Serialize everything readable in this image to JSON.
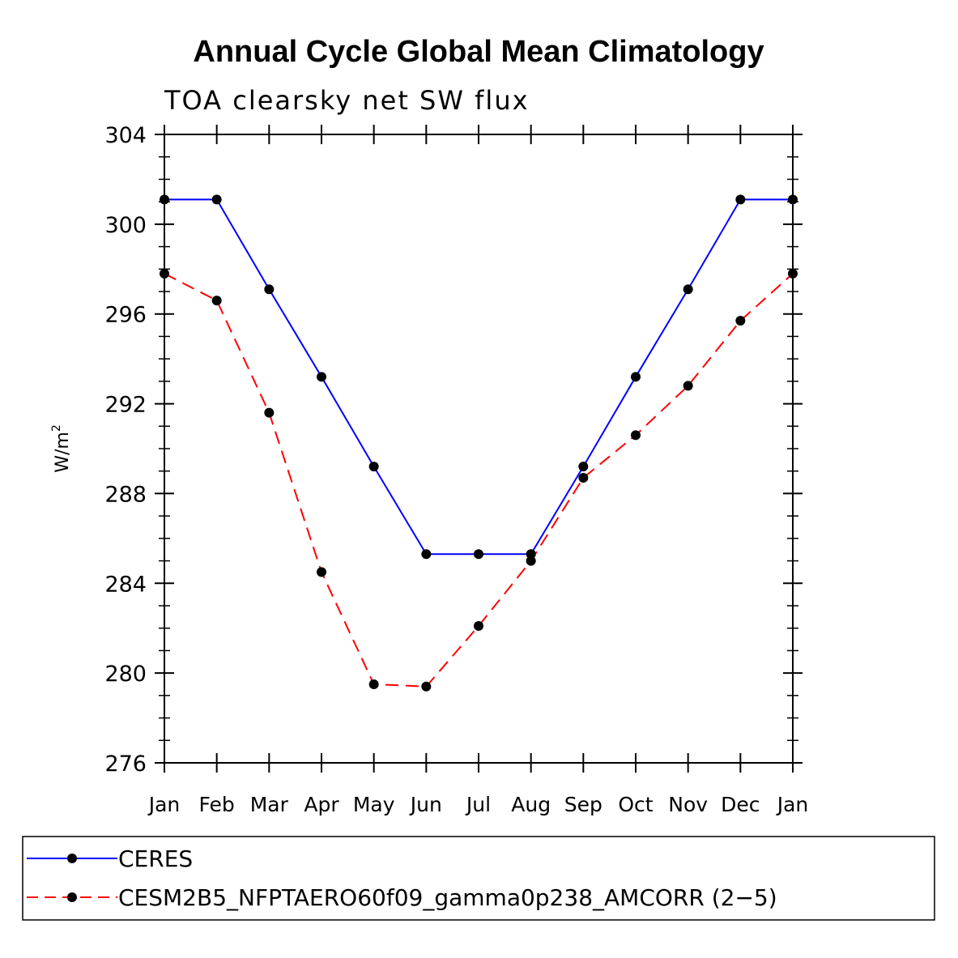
{
  "chart_data": {
    "type": "line",
    "title": "Annual Cycle Global Mean Climatology",
    "subtitle": "TOA clearsky net SW flux",
    "xlabel": "",
    "ylabel": "W/m",
    "ylabel_superscript": "2",
    "categories": [
      "Jan",
      "Feb",
      "Mar",
      "Apr",
      "May",
      "Jun",
      "Jul",
      "Aug",
      "Sep",
      "Oct",
      "Nov",
      "Dec",
      "Jan"
    ],
    "ylim": [
      276,
      304
    ],
    "yticks": [
      276,
      280,
      284,
      288,
      292,
      296,
      300,
      304
    ],
    "series": [
      {
        "name": "CERES",
        "color": "#0000ff",
        "line_style": "solid",
        "values": [
          301.1,
          301.1,
          297.1,
          293.2,
          289.2,
          285.3,
          285.3,
          285.3,
          289.2,
          293.2,
          297.1,
          301.1,
          301.1
        ]
      },
      {
        "name": "CESM2B5_NFPTAERO60f09_gamma0p238_AMCORR (2−5)",
        "color": "#ff0000",
        "line_style": "dashed",
        "values": [
          297.8,
          296.6,
          291.6,
          284.5,
          279.5,
          279.4,
          282.1,
          285.0,
          288.7,
          290.6,
          292.8,
          295.7,
          297.8
        ]
      }
    ],
    "legend_position": "bottom"
  }
}
